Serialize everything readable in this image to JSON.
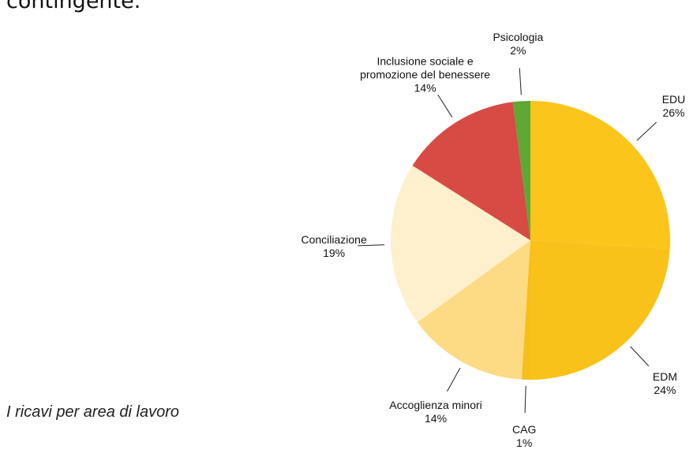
{
  "text": "contingente.",
  "caption": "I ricavi per area di lavoro",
  "chart_data": {
    "type": "pie",
    "categories": [
      "EDU",
      "EDM",
      "CAG",
      "Accoglienza minori",
      "Conciliazione",
      "Inclusione sociale e promozione del benessere",
      "Psicologia"
    ],
    "values": [
      26,
      24,
      1,
      14,
      19,
      14,
      2
    ],
    "value_labels": [
      "26%",
      "24%",
      "1%",
      "14%",
      "19%",
      "14%",
      "2%"
    ],
    "colors": [
      "#fbc51b",
      "#f9c21a",
      "#f6bf1a",
      "#fcdb84",
      "#fef0cc",
      "#d84a44",
      "#5ea833"
    ]
  }
}
